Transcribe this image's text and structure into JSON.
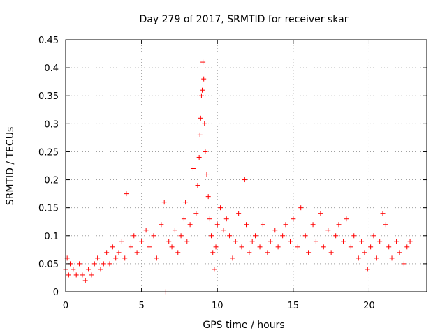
{
  "chart_data": {
    "type": "scatter",
    "title": "Day 279 of 2017, SRMTID for receiver skar",
    "xlabel": "GPS time / hours",
    "ylabel": "SRMTID / TECUs",
    "xlim": [
      0,
      23.8
    ],
    "ylim": [
      0,
      0.45
    ],
    "xticks": [
      0,
      5,
      10,
      15,
      20
    ],
    "xtick_labels": [
      "0",
      "5",
      "10",
      "15",
      "20"
    ],
    "yticks": [
      0,
      0.05,
      0.1,
      0.15,
      0.2,
      0.25,
      0.3,
      0.35,
      0.4,
      0.45
    ],
    "ytick_labels": [
      "0",
      "0.05",
      "0.1",
      "0.15",
      "0.2",
      "0.25",
      "0.3",
      "0.35",
      "0.4",
      "0.45"
    ],
    "grid": true,
    "marker": "plus",
    "color": "#ff0000",
    "series": [
      {
        "name": "SRMTID",
        "x": [
          0.0,
          0.1,
          0.2,
          0.3,
          0.5,
          0.7,
          0.9,
          1.1,
          1.3,
          1.5,
          1.7,
          1.9,
          2.1,
          2.3,
          2.5,
          2.7,
          2.9,
          3.1,
          3.3,
          3.5,
          3.7,
          3.9,
          4.0,
          4.3,
          4.5,
          4.7,
          5.0,
          5.3,
          5.5,
          5.8,
          6.0,
          6.3,
          6.5,
          6.6,
          6.8,
          7.0,
          7.2,
          7.4,
          7.6,
          7.8,
          7.9,
          8.0,
          8.2,
          8.4,
          8.6,
          8.7,
          8.8,
          8.85,
          8.9,
          8.95,
          9.0,
          9.05,
          9.1,
          9.15,
          9.2,
          9.3,
          9.4,
          9.5,
          9.6,
          9.7,
          9.8,
          9.9,
          10.0,
          10.2,
          10.4,
          10.6,
          10.8,
          11.0,
          11.2,
          11.4,
          11.6,
          11.8,
          11.9,
          12.1,
          12.3,
          12.5,
          12.8,
          13.0,
          13.3,
          13.5,
          13.8,
          14.0,
          14.3,
          14.5,
          14.8,
          15.0,
          15.3,
          15.5,
          15.8,
          16.0,
          16.3,
          16.5,
          16.8,
          17.0,
          17.3,
          17.5,
          17.8,
          18.0,
          18.3,
          18.5,
          18.8,
          19.0,
          19.3,
          19.5,
          19.7,
          19.9,
          20.1,
          20.3,
          20.5,
          20.7,
          20.9,
          21.1,
          21.3,
          21.5,
          21.8,
          22.0,
          22.3,
          22.5,
          22.7
        ],
        "y": [
          0.04,
          0.06,
          0.03,
          0.05,
          0.04,
          0.03,
          0.05,
          0.03,
          0.02,
          0.04,
          0.03,
          0.05,
          0.06,
          0.04,
          0.05,
          0.07,
          0.05,
          0.08,
          0.06,
          0.07,
          0.09,
          0.06,
          0.175,
          0.08,
          0.1,
          0.07,
          0.09,
          0.11,
          0.08,
          0.1,
          0.06,
          0.12,
          0.16,
          0.0,
          0.09,
          0.08,
          0.11,
          0.07,
          0.1,
          0.13,
          0.16,
          0.09,
          0.12,
          0.22,
          0.14,
          0.19,
          0.24,
          0.28,
          0.31,
          0.35,
          0.36,
          0.41,
          0.38,
          0.3,
          0.25,
          0.21,
          0.17,
          0.13,
          0.1,
          0.07,
          0.04,
          0.08,
          0.12,
          0.15,
          0.11,
          0.13,
          0.1,
          0.06,
          0.09,
          0.14,
          0.08,
          0.2,
          0.12,
          0.07,
          0.09,
          0.1,
          0.08,
          0.12,
          0.07,
          0.09,
          0.11,
          0.08,
          0.1,
          0.12,
          0.09,
          0.13,
          0.08,
          0.15,
          0.1,
          0.07,
          0.12,
          0.09,
          0.14,
          0.08,
          0.11,
          0.07,
          0.1,
          0.12,
          0.09,
          0.13,
          0.08,
          0.1,
          0.06,
          0.09,
          0.07,
          0.04,
          0.08,
          0.1,
          0.06,
          0.09,
          0.14,
          0.12,
          0.08,
          0.06,
          0.09,
          0.07,
          0.05,
          0.08,
          0.09
        ]
      }
    ]
  }
}
